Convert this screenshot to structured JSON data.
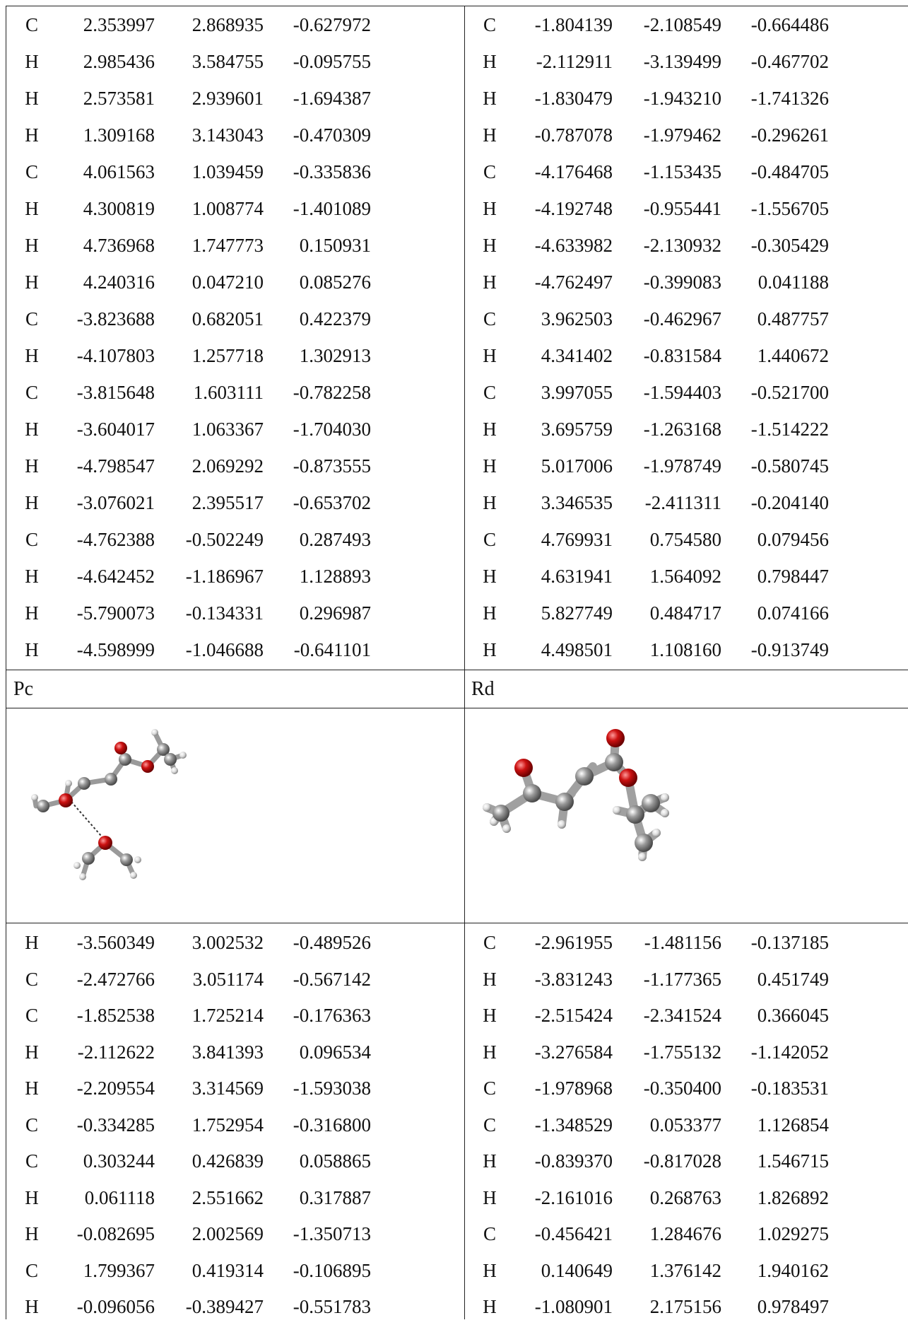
{
  "top_table": {
    "left_rows": [
      [
        "C",
        "2.353997",
        "2.868935",
        "-0.627972"
      ],
      [
        "H",
        "2.985436",
        "3.584755",
        "-0.095755"
      ],
      [
        "H",
        "2.573581",
        "2.939601",
        "-1.694387"
      ],
      [
        "H",
        "1.309168",
        "3.143043",
        "-0.470309"
      ],
      [
        "C",
        "4.061563",
        "1.039459",
        "-0.335836"
      ],
      [
        "H",
        "4.300819",
        "1.008774",
        "-1.401089"
      ],
      [
        "H",
        "4.736968",
        "1.747773",
        "0.150931"
      ],
      [
        "H",
        "4.240316",
        "0.047210",
        "0.085276"
      ],
      [
        "C",
        "-3.823688",
        "0.682051",
        "0.422379"
      ],
      [
        "H",
        "-4.107803",
        "1.257718",
        "1.302913"
      ],
      [
        "C",
        "-3.815648",
        "1.603111",
        "-0.782258"
      ],
      [
        "H",
        "-3.604017",
        "1.063367",
        "-1.704030"
      ],
      [
        "H",
        "-4.798547",
        "2.069292",
        "-0.873555"
      ],
      [
        "H",
        "-3.076021",
        "2.395517",
        "-0.653702"
      ],
      [
        "C",
        "-4.762388",
        "-0.502249",
        "0.287493"
      ],
      [
        "H",
        "-4.642452",
        "-1.186967",
        "1.128893"
      ],
      [
        "H",
        "-5.790073",
        "-0.134331",
        "0.296987"
      ],
      [
        "H",
        "-4.598999",
        "-1.046688",
        "-0.641101"
      ]
    ],
    "right_rows": [
      [
        "C",
        "-1.804139",
        "-2.108549",
        "-0.664486"
      ],
      [
        "H",
        "-2.112911",
        "-3.139499",
        "-0.467702"
      ],
      [
        "H",
        "-1.830479",
        "-1.943210",
        "-1.741326"
      ],
      [
        "H",
        "-0.787078",
        "-1.979462",
        "-0.296261"
      ],
      [
        "C",
        "-4.176468",
        "-1.153435",
        "-0.484705"
      ],
      [
        "H",
        "-4.192748",
        "-0.955441",
        "-1.556705"
      ],
      [
        "H",
        "-4.633982",
        "-2.130932",
        "-0.305429"
      ],
      [
        "H",
        "-4.762497",
        "-0.399083",
        "0.041188"
      ],
      [
        "C",
        "3.962503",
        "-0.462967",
        "0.487757"
      ],
      [
        "H",
        "4.341402",
        "-0.831584",
        "1.440672"
      ],
      [
        "C",
        "3.997055",
        "-1.594403",
        "-0.521700"
      ],
      [
        "H",
        "3.695759",
        "-1.263168",
        "-1.514222"
      ],
      [
        "H",
        "5.017006",
        "-1.978749",
        "-0.580745"
      ],
      [
        "H",
        "3.346535",
        "-2.411311",
        "-0.204140"
      ],
      [
        "C",
        "4.769931",
        "0.754580",
        "0.079456"
      ],
      [
        "H",
        "4.631941",
        "1.564092",
        "0.798447"
      ],
      [
        "H",
        "5.827749",
        "0.484717",
        "0.074166"
      ],
      [
        "H",
        "4.498501",
        "1.108160",
        "-0.913749"
      ]
    ]
  },
  "sections": {
    "left_label": "Pc",
    "right_label": "Rd"
  },
  "bottom_table": {
    "left_rows": [
      [
        "H",
        "-3.560349",
        "3.002532",
        "-0.489526"
      ],
      [
        "C",
        "-2.472766",
        "3.051174",
        "-0.567142"
      ],
      [
        "C",
        "-1.852538",
        "1.725214",
        "-0.176363"
      ],
      [
        "H",
        "-2.112622",
        "3.841393",
        "0.096534"
      ],
      [
        "H",
        "-2.209554",
        "3.314569",
        "-1.593038"
      ],
      [
        "C",
        "-0.334285",
        "1.752954",
        "-0.316800"
      ],
      [
        "C",
        "0.303244",
        "0.426839",
        "0.058865"
      ],
      [
        "H",
        "0.061118",
        "2.551662",
        "0.317887"
      ],
      [
        "H",
        "-0.082695",
        "2.002569",
        "-1.350713"
      ],
      [
        "C",
        "1.799367",
        "0.419314",
        "-0.106895"
      ],
      [
        "H",
        "-0.096056",
        "-0.389427",
        "-0.551783"
      ]
    ],
    "right_rows": [
      [
        "C",
        "-2.961955",
        "-1.481156",
        "-0.137185"
      ],
      [
        "H",
        "-3.831243",
        "-1.177365",
        "0.451749"
      ],
      [
        "H",
        "-2.515424",
        "-2.341524",
        "0.366045"
      ],
      [
        "H",
        "-3.276584",
        "-1.755132",
        "-1.142052"
      ],
      [
        "C",
        "-1.978968",
        "-0.350400",
        "-0.183531"
      ],
      [
        "C",
        "-1.348529",
        "0.053377",
        "1.126854"
      ],
      [
        "H",
        "-0.839370",
        "-0.817028",
        "1.546715"
      ],
      [
        "H",
        "-2.161016",
        "0.268763",
        "1.826892"
      ],
      [
        "C",
        "-0.456421",
        "1.284676",
        "1.029275"
      ],
      [
        "H",
        "0.140649",
        "1.376142",
        "1.940162"
      ],
      [
        "H",
        "-1.080901",
        "2.175156",
        "0.978497"
      ]
    ]
  },
  "colors": {
    "oxygen": "#cc1111",
    "carbon": "#8c8c8c",
    "hydrogen": "#d9d9d9",
    "rule": "#222222"
  }
}
